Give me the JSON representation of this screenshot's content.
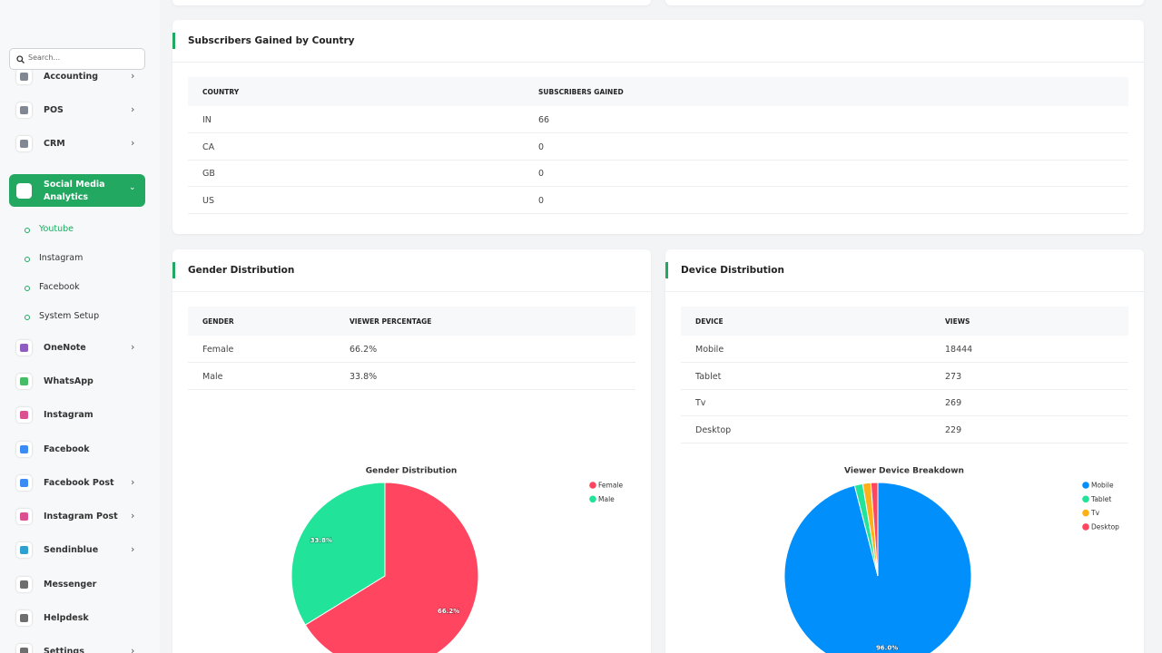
{
  "sidebar": {
    "search_placeholder": "Search...",
    "items": [
      {
        "label": "Accounting",
        "has_submenu": true
      },
      {
        "label": "POS",
        "has_submenu": true
      },
      {
        "label": "CRM",
        "has_submenu": true
      },
      {
        "label": "Social Media Analytics",
        "has_submenu": true,
        "active": true,
        "children": [
          "Youtube",
          "Instagram",
          "Facebook",
          "System Setup"
        ]
      },
      {
        "label": "OneNote",
        "has_submenu": true
      },
      {
        "label": "WhatsApp",
        "has_submenu": false
      },
      {
        "label": "Instagram",
        "has_submenu": false
      },
      {
        "label": "Facebook",
        "has_submenu": false
      },
      {
        "label": "Facebook Post",
        "has_submenu": true
      },
      {
        "label": "Instagram Post",
        "has_submenu": true
      },
      {
        "label": "Sendinblue",
        "has_submenu": true
      },
      {
        "label": "Messenger",
        "has_submenu": false
      },
      {
        "label": "Helpdesk",
        "has_submenu": false
      },
      {
        "label": "Settings",
        "has_submenu": true
      }
    ]
  },
  "country_card": {
    "title": "Subscribers Gained by Country",
    "table": {
      "headers": [
        "COUNTRY",
        "SUBSCRIBERS GAINED"
      ],
      "rows": [
        [
          "IN",
          "66"
        ],
        [
          "CA",
          "0"
        ],
        [
          "GB",
          "0"
        ],
        [
          "US",
          "0"
        ]
      ]
    }
  },
  "gender_card": {
    "title": "Gender Distribution",
    "table": {
      "headers": [
        "GENDER",
        "VIEWER PERCENTAGE"
      ],
      "rows": [
        [
          "Female",
          "66.2%"
        ],
        [
          "Male",
          "33.8%"
        ]
      ]
    },
    "chart_data": {
      "type": "pie",
      "title": "Gender Distribution",
      "categories": [
        "Female",
        "Male"
      ],
      "values": [
        66.2,
        33.8
      ],
      "value_labels": [
        "66.2%",
        "33.8%"
      ],
      "colors": [
        "#ff4560",
        "#21e39a"
      ],
      "legend": "top-right"
    }
  },
  "device_card": {
    "title": "Device Distribution",
    "table": {
      "headers": [
        "DEVICE",
        "VIEWS"
      ],
      "rows": [
        [
          "Mobile",
          "18444"
        ],
        [
          "Tablet",
          "273"
        ],
        [
          "Tv",
          "269"
        ],
        [
          "Desktop",
          "229"
        ]
      ]
    },
    "chart_data": {
      "type": "pie",
      "title": "Viewer Device Breakdown",
      "categories": [
        "Mobile",
        "Tablet",
        "Tv",
        "Desktop"
      ],
      "values": [
        18444,
        273,
        269,
        229
      ],
      "value_labels": [
        "96.0%",
        null,
        null,
        null
      ],
      "colors": [
        "#008ffb",
        "#21e39a",
        "#feb019",
        "#ff4560"
      ],
      "legend": "top-right"
    }
  }
}
